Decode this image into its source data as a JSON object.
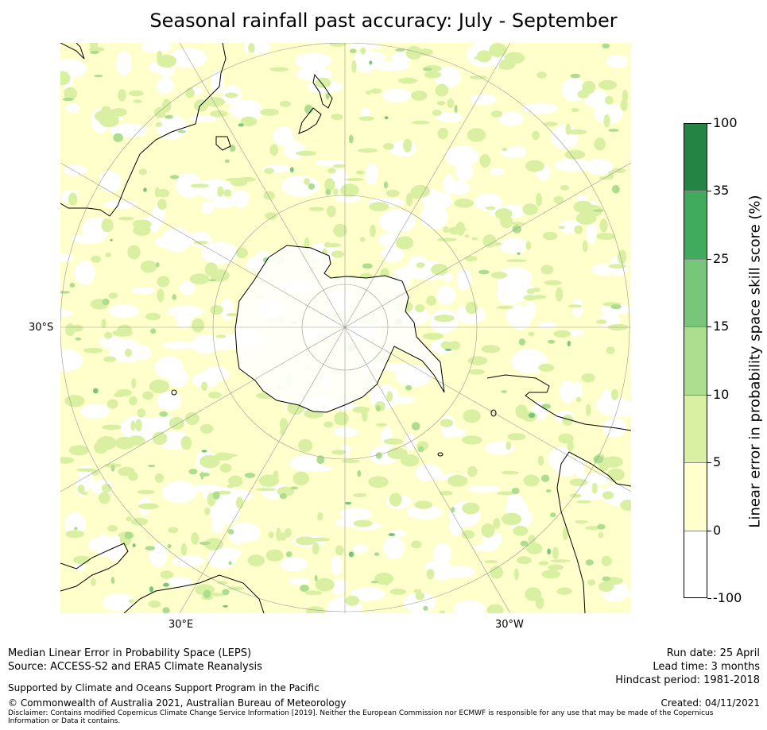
{
  "title": "Seasonal rainfall past accuracy: July - September",
  "map": {
    "projection": "south-polar-stereographic",
    "lat_labels": [
      "30°S"
    ],
    "lon_labels": [
      "30°E",
      "30°W"
    ],
    "land_outline_color": "#000000",
    "gridline_color": "#9a9a9a"
  },
  "colorbar": {
    "title": "Linear error in probability space skill score (%)",
    "tick_labels": [
      "100",
      "35",
      "25",
      "15",
      "10",
      "5",
      "0",
      "-100"
    ],
    "bins": [
      {
        "from": -100,
        "to": 0,
        "color": "#ffffff"
      },
      {
        "from": 0,
        "to": 5,
        "color": "#ffffcc"
      },
      {
        "from": 5,
        "to": 10,
        "color": "#d9f0a3"
      },
      {
        "from": 10,
        "to": 15,
        "color": "#addd8e"
      },
      {
        "from": 15,
        "to": 25,
        "color": "#78c679"
      },
      {
        "from": 25,
        "to": 35,
        "color": "#41ab5d"
      },
      {
        "from": 35,
        "to": 100,
        "color": "#238443"
      }
    ]
  },
  "footer": {
    "line1": "Median Linear Error in Probability Space (LEPS)",
    "line2": "Source: ACCESS-S2 and ERA5 Climate Reanalysis",
    "support": "Supported by Climate and Oceans Support Program in the Pacific",
    "copyright": "© Commonwealth of Australia 2021, Australian Bureau of Meteorology",
    "disclaimer": "Disclaimer: Contains modified Copernicus Climate Change Service Information [2019]. Neither the European Commission nor ECMWF is responsible for any use that may be made of the Copernicus Information or Data it contains.",
    "run_date": "Run date: 25 April",
    "lead_time": "Lead time: 3 months",
    "hindcast": "Hindcast period: 1981-2018",
    "created": "Created: 04/11/2021"
  }
}
